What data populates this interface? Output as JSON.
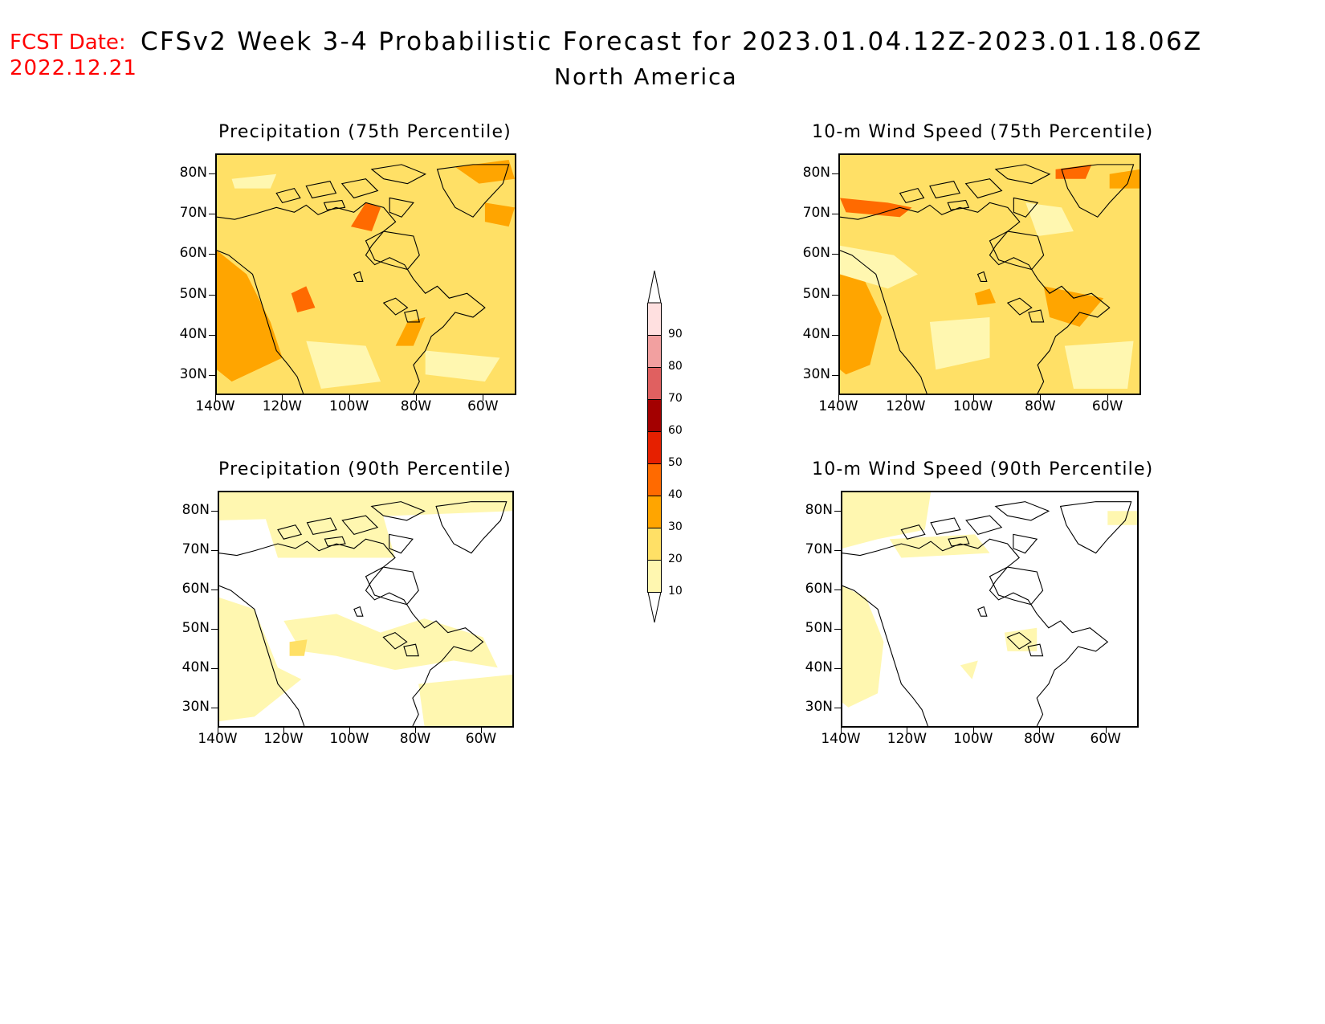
{
  "header": {
    "fcst_label": "FCST Date:",
    "fcst_date": "2022.12.21",
    "title": "CFSv2 Week 3-4 Probabilistic Forecast for 2023.01.04.12Z-2023.01.18.06Z",
    "subtitle": "North America"
  },
  "panels": [
    {
      "title": "Precipitation (75th Percentile)",
      "variable": "precipitation",
      "percentile": "75th"
    },
    {
      "title": "10-m Wind Speed (75th Percentile)",
      "variable": "10-m wind speed",
      "percentile": "75th"
    },
    {
      "title": "Precipitation (90th Percentile)",
      "variable": "precipitation",
      "percentile": "90th"
    },
    {
      "title": "10-m Wind Speed (90th Percentile)",
      "variable": "10-m wind speed",
      "percentile": "90th"
    }
  ],
  "axes": {
    "lat_labels": [
      "80N",
      "70N",
      "60N",
      "50N",
      "40N",
      "30N"
    ],
    "lon_labels": [
      "140W",
      "120W",
      "100W",
      "80W",
      "60W"
    ],
    "lat_range": [
      25,
      85
    ],
    "lon_range": [
      -140,
      -50
    ]
  },
  "colorbar": {
    "levels": [
      "10",
      "20",
      "30",
      "40",
      "50",
      "60",
      "70",
      "80",
      "90"
    ],
    "colors": [
      "#fff7b0",
      "#ffe066",
      "#ffa500",
      "#ff6a00",
      "#e62000",
      "#a30000",
      "#c00000",
      "#e06060",
      "#f2a0a0",
      "#ffe0e0"
    ]
  }
}
